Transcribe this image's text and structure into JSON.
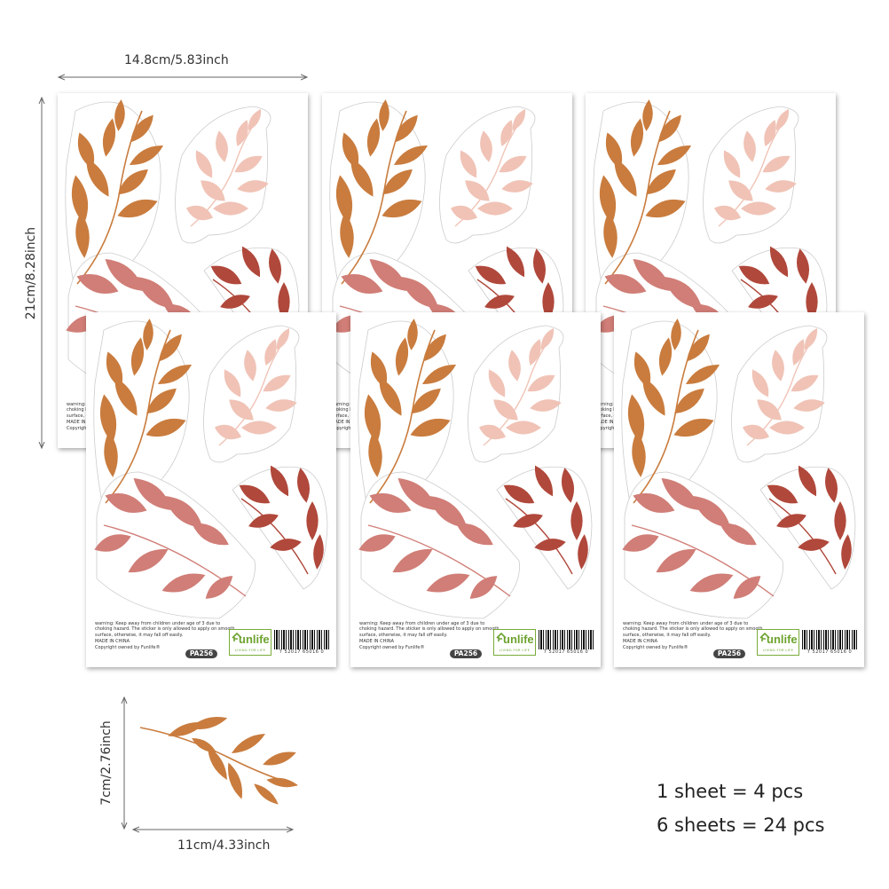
{
  "dimensions": {
    "sheet_width": "14.8cm/5.83inch",
    "sheet_height": "21cm/8.28inch",
    "sticker_height": "7cm/2.76inch",
    "sticker_width": "11cm/4.33inch"
  },
  "sheet": {
    "warning": "warning: Keep away from children under age of 3 due to choking hazard. The sticker is only allowed to apply on smooth surface, otherwise, it may fall off easily.",
    "made_in": "MADE IN CHINA",
    "copyright": "Copyright owned by Funlife®",
    "product_code": "PA256",
    "logo_brand": "unlife",
    "logo_tagline": "LIVING FOR LIFE",
    "barcode_digits": "7 52017 65016 0"
  },
  "sheet_count_shown": 6,
  "quantity": {
    "line1": "1 sheet = 4 pcs",
    "line2": "6 sheets = 24 pcs"
  },
  "colors": {
    "orange_leaf": "#c97c3e",
    "light_pink_leaf": "#f0c3b6",
    "rose_leaf": "#d07e77",
    "red_leaf": "#b0483b",
    "logo_green": "#7aac3a"
  }
}
